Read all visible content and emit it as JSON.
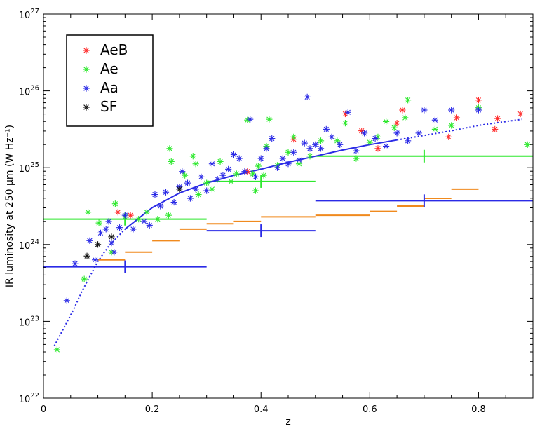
{
  "chart_data": {
    "type": "scatter",
    "xlabel": "z",
    "ylabel": "IR luminosity at 250 μm (W Hz⁻¹)",
    "xlim": [
      0,
      0.9
    ],
    "ylim_log10": [
      22,
      27
    ],
    "x_ticks": [
      0,
      0.2,
      0.4,
      0.6,
      0.8
    ],
    "x_tick_labels": [
      "0",
      "0.2",
      "0.4",
      "0.6",
      "0.8"
    ],
    "y_ticks_log10": [
      22,
      23,
      24,
      25,
      26,
      27
    ],
    "y_tick_labels": [
      {
        "base": "10",
        "exp": "22"
      },
      {
        "base": "10",
        "exp": "23"
      },
      {
        "base": "10",
        "exp": "24"
      },
      {
        "base": "10",
        "exp": "25"
      },
      {
        "base": "10",
        "exp": "26"
      },
      {
        "base": "10",
        "exp": "27"
      }
    ],
    "y_scale": "log",
    "legend": {
      "position": "top-left",
      "entries": [
        "AeB",
        "Ae",
        "Aa",
        "SF"
      ]
    },
    "colors": {
      "AeB": "#ff2a2a",
      "Ae": "#2ee82e",
      "Aa": "#2a2ae6",
      "SF": "#111111",
      "limits": "#f08a1e"
    },
    "series": [
      {
        "name": "AeB",
        "marker": "asterisk",
        "points": [
          [
            0.137,
            24.42
          ],
          [
            0.16,
            24.38
          ],
          [
            0.375,
            24.95
          ],
          [
            0.46,
            25.37
          ],
          [
            0.555,
            25.7
          ],
          [
            0.585,
            25.48
          ],
          [
            0.615,
            25.25
          ],
          [
            0.65,
            25.58
          ],
          [
            0.66,
            25.75
          ],
          [
            0.745,
            25.4
          ],
          [
            0.76,
            25.65
          ],
          [
            0.8,
            25.88
          ],
          [
            0.83,
            25.5
          ],
          [
            0.835,
            25.64
          ],
          [
            0.877,
            25.7
          ]
        ]
      },
      {
        "name": "Ae",
        "marker": "asterisk",
        "points": [
          [
            0.025,
            22.63
          ],
          [
            0.075,
            23.55
          ],
          [
            0.082,
            24.42
          ],
          [
            0.102,
            24.28
          ],
          [
            0.125,
            23.9
          ],
          [
            0.132,
            24.53
          ],
          [
            0.15,
            24.36
          ],
          [
            0.175,
            24.33
          ],
          [
            0.19,
            24.42
          ],
          [
            0.21,
            24.33
          ],
          [
            0.23,
            24.38
          ],
          [
            0.232,
            25.25
          ],
          [
            0.235,
            25.08
          ],
          [
            0.26,
            24.9
          ],
          [
            0.275,
            25.15
          ],
          [
            0.28,
            25.05
          ],
          [
            0.285,
            24.65
          ],
          [
            0.3,
            24.8
          ],
          [
            0.31,
            24.72
          ],
          [
            0.325,
            25.08
          ],
          [
            0.345,
            24.82
          ],
          [
            0.355,
            24.92
          ],
          [
            0.375,
            25.62
          ],
          [
            0.385,
            24.92
          ],
          [
            0.39,
            24.7
          ],
          [
            0.395,
            25.02
          ],
          [
            0.405,
            24.9
          ],
          [
            0.41,
            25.28
          ],
          [
            0.415,
            25.63
          ],
          [
            0.43,
            25.03
          ],
          [
            0.45,
            25.2
          ],
          [
            0.46,
            25.4
          ],
          [
            0.47,
            25.05
          ],
          [
            0.49,
            25.15
          ],
          [
            0.51,
            25.35
          ],
          [
            0.54,
            25.35
          ],
          [
            0.555,
            25.58
          ],
          [
            0.575,
            25.12
          ],
          [
            0.6,
            25.33
          ],
          [
            0.615,
            25.4
          ],
          [
            0.63,
            25.6
          ],
          [
            0.645,
            25.52
          ],
          [
            0.665,
            25.65
          ],
          [
            0.67,
            25.88
          ],
          [
            0.72,
            25.5
          ],
          [
            0.75,
            25.55
          ],
          [
            0.8,
            25.78
          ],
          [
            0.89,
            25.3
          ]
        ]
      },
      {
        "name": "Aa",
        "marker": "asterisk",
        "points": [
          [
            0.043,
            23.27
          ],
          [
            0.058,
            23.75
          ],
          [
            0.085,
            24.05
          ],
          [
            0.095,
            23.8
          ],
          [
            0.105,
            24.15
          ],
          [
            0.115,
            24.2
          ],
          [
            0.12,
            24.3
          ],
          [
            0.125,
            24.02
          ],
          [
            0.13,
            23.9
          ],
          [
            0.14,
            24.22
          ],
          [
            0.15,
            24.38
          ],
          [
            0.165,
            24.2
          ],
          [
            0.185,
            24.3
          ],
          [
            0.195,
            24.25
          ],
          [
            0.205,
            24.65
          ],
          [
            0.215,
            24.5
          ],
          [
            0.225,
            24.68
          ],
          [
            0.24,
            24.55
          ],
          [
            0.25,
            24.75
          ],
          [
            0.255,
            24.95
          ],
          [
            0.265,
            24.8
          ],
          [
            0.27,
            24.6
          ],
          [
            0.28,
            24.72
          ],
          [
            0.29,
            24.88
          ],
          [
            0.3,
            24.7
          ],
          [
            0.31,
            25.05
          ],
          [
            0.32,
            24.85
          ],
          [
            0.33,
            24.9
          ],
          [
            0.34,
            24.98
          ],
          [
            0.35,
            25.17
          ],
          [
            0.36,
            25.12
          ],
          [
            0.37,
            24.95
          ],
          [
            0.38,
            25.63
          ],
          [
            0.39,
            24.88
          ],
          [
            0.4,
            25.12
          ],
          [
            0.41,
            25.25
          ],
          [
            0.42,
            25.38
          ],
          [
            0.43,
            25.0
          ],
          [
            0.44,
            25.12
          ],
          [
            0.45,
            25.05
          ],
          [
            0.46,
            25.2
          ],
          [
            0.47,
            25.1
          ],
          [
            0.48,
            25.32
          ],
          [
            0.485,
            25.92
          ],
          [
            0.49,
            25.25
          ],
          [
            0.5,
            25.3
          ],
          [
            0.51,
            25.25
          ],
          [
            0.52,
            25.5
          ],
          [
            0.53,
            25.4
          ],
          [
            0.545,
            25.3
          ],
          [
            0.56,
            25.72
          ],
          [
            0.575,
            25.22
          ],
          [
            0.59,
            25.45
          ],
          [
            0.61,
            25.38
          ],
          [
            0.63,
            25.28
          ],
          [
            0.65,
            25.45
          ],
          [
            0.67,
            25.35
          ],
          [
            0.69,
            25.45
          ],
          [
            0.7,
            25.75
          ],
          [
            0.72,
            25.62
          ],
          [
            0.75,
            25.75
          ],
          [
            0.8,
            25.75
          ]
        ]
      },
      {
        "name": "SF",
        "marker": "asterisk",
        "points": [
          [
            0.08,
            23.85
          ],
          [
            0.1,
            24.0
          ],
          [
            0.125,
            24.1
          ],
          [
            0.25,
            24.72
          ]
        ]
      }
    ],
    "fit_curve": {
      "style": "dotted-then-solid",
      "points": [
        [
          0.02,
          22.68
        ],
        [
          0.055,
          23.15
        ],
        [
          0.07,
          23.38
        ],
        [
          0.085,
          23.58
        ],
        [
          0.1,
          23.78
        ],
        [
          0.12,
          23.98
        ],
        [
          0.15,
          24.2
        ],
        [
          0.2,
          24.48
        ],
        [
          0.25,
          24.67
        ],
        [
          0.3,
          24.8
        ],
        [
          0.35,
          24.9
        ],
        [
          0.4,
          24.98
        ],
        [
          0.45,
          25.07
        ],
        [
          0.5,
          25.15
        ],
        [
          0.55,
          25.23
        ],
        [
          0.6,
          25.3
        ],
        [
          0.65,
          25.36
        ],
        [
          0.7,
          25.42
        ],
        [
          0.75,
          25.48
        ],
        [
          0.8,
          25.55
        ],
        [
          0.85,
          25.6
        ],
        [
          0.88,
          25.63
        ]
      ]
    },
    "binned_green": [
      {
        "xmin": 0.0,
        "xmax": 0.15,
        "xmark": 0.15,
        "y": 24.33
      },
      {
        "xmin": 0.15,
        "xmax": 0.3,
        "xmark": 0.15,
        "y": 24.33
      },
      {
        "xmin": 0.3,
        "xmax": 0.5,
        "xmark": 0.4,
        "y": 24.82
      },
      {
        "xmin": 0.5,
        "xmax": 0.9,
        "xmark": 0.7,
        "y": 25.15
      }
    ],
    "binned_blue": [
      {
        "xmin": 0.0,
        "xmax": 0.3,
        "xmark": 0.15,
        "y": 23.71
      },
      {
        "xmin": 0.3,
        "xmax": 0.5,
        "xmark": 0.4,
        "y": 24.18
      },
      {
        "xmin": 0.5,
        "xmax": 0.9,
        "xmark": 0.7,
        "y": 24.57
      }
    ],
    "limits_orange": [
      {
        "x1": 0.1,
        "x2": 0.15,
        "y": 23.8
      },
      {
        "x1": 0.15,
        "x2": 0.2,
        "y": 23.9
      },
      {
        "x1": 0.2,
        "x2": 0.25,
        "y": 24.05
      },
      {
        "x1": 0.25,
        "x2": 0.3,
        "y": 24.2
      },
      {
        "x1": 0.3,
        "x2": 0.35,
        "y": 24.27
      },
      {
        "x1": 0.35,
        "x2": 0.4,
        "y": 24.3
      },
      {
        "x1": 0.4,
        "x2": 0.5,
        "y": 24.36
      },
      {
        "x1": 0.5,
        "x2": 0.6,
        "y": 24.38
      },
      {
        "x1": 0.6,
        "x2": 0.65,
        "y": 24.43
      },
      {
        "x1": 0.65,
        "x2": 0.7,
        "y": 24.5
      },
      {
        "x1": 0.7,
        "x2": 0.75,
        "y": 24.6
      },
      {
        "x1": 0.75,
        "x2": 0.8,
        "y": 24.72
      }
    ]
  }
}
